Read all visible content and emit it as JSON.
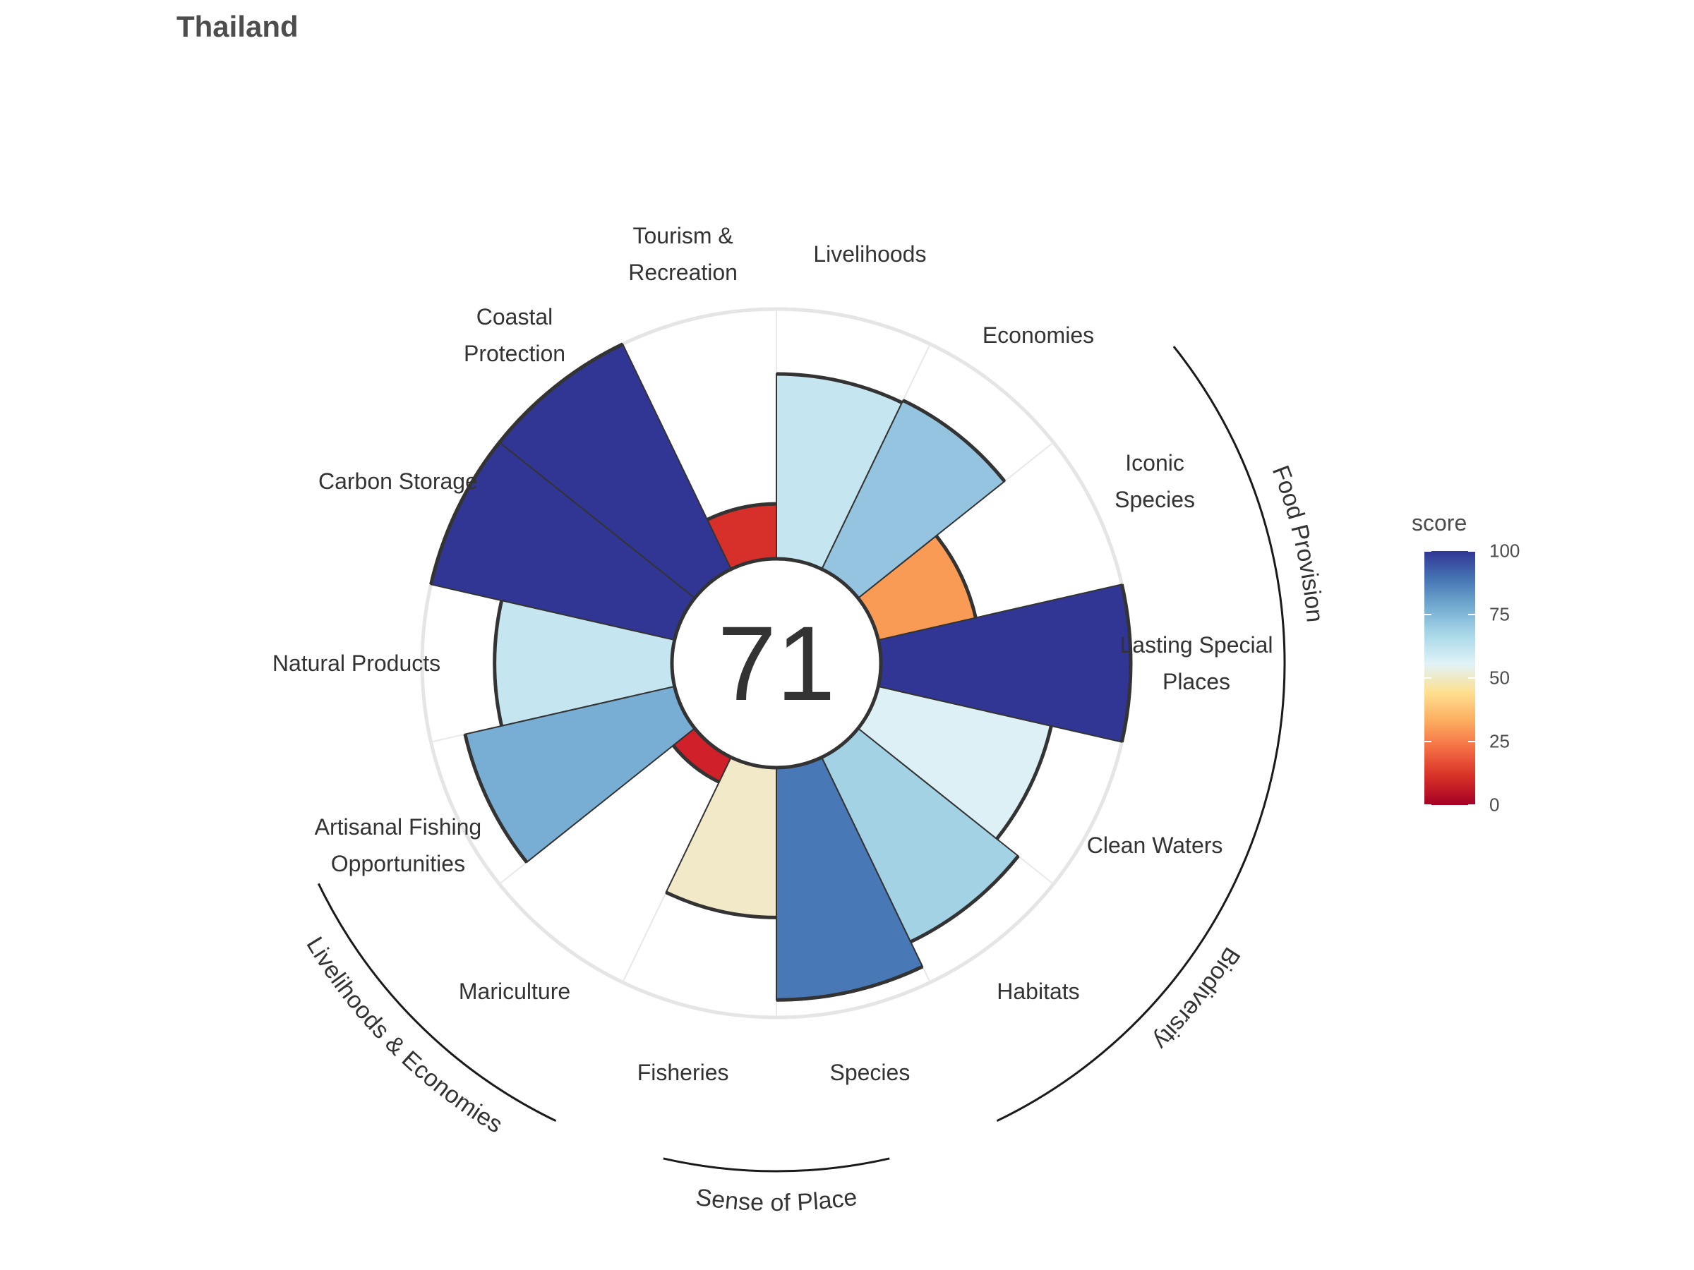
{
  "title": "Thailand",
  "center_score": "71",
  "chart_data": {
    "type": "polar-bar",
    "title": "Thailand",
    "center_label": "71",
    "ylim": [
      0,
      100
    ],
    "goals": [
      {
        "label": [
          "Species"
        ],
        "score": 93,
        "color": "#4878b6"
      },
      {
        "label": [
          "Habitats"
        ],
        "score": 82,
        "color": "#a3d2e4"
      },
      {
        "label": [
          "Clean Waters"
        ],
        "score": 71,
        "color": "#dcf0f6"
      },
      {
        "label": [
          "Lasting Special",
          "Places"
        ],
        "score": 100,
        "color": "#313695"
      },
      {
        "label": [
          "Iconic",
          "Species"
        ],
        "score": 40,
        "color": "#f99b54"
      },
      {
        "label": [
          "Economies"
        ],
        "score": 75,
        "color": "#94c4df"
      },
      {
        "label": [
          "Livelihoods"
        ],
        "score": 74,
        "color": "#c5e5f0"
      },
      {
        "label": [
          "Tourism &",
          "Recreation"
        ],
        "score": 22,
        "color": "#d7302a"
      },
      {
        "label": [
          "Coastal",
          "Protection"
        ],
        "score": 100,
        "color": "#313695"
      },
      {
        "label": [
          "Carbon Storage"
        ],
        "score": 100,
        "color": "#313695"
      },
      {
        "label": [
          "Natural Products"
        ],
        "score": 71,
        "color": "#c5e5f0"
      },
      {
        "label": [
          "Artisanal Fishing",
          "Opportunities"
        ],
        "score": 86,
        "color": "#78aed3"
      },
      {
        "label": [
          "Mariculture"
        ],
        "score": 11,
        "color": "#d0202a"
      },
      {
        "label": [
          "Fisheries"
        ],
        "score": 60,
        "color": "#f2e9c8"
      }
    ],
    "groups": [
      {
        "label": "Food Provision"
      },
      {
        "label": "Biodiversity"
      },
      {
        "label": "Sense of Place"
      },
      {
        "label": "Livelihoods & Economies"
      }
    ],
    "legend": {
      "title": "score",
      "ticks": [
        "100",
        "75",
        "50",
        "25",
        "0"
      ],
      "colors": [
        "#313695",
        "#4575b4",
        "#74add1",
        "#abd9e9",
        "#e0f3f8",
        "#fee090",
        "#fdae61",
        "#f46d43",
        "#d73027",
        "#a50026"
      ]
    }
  }
}
